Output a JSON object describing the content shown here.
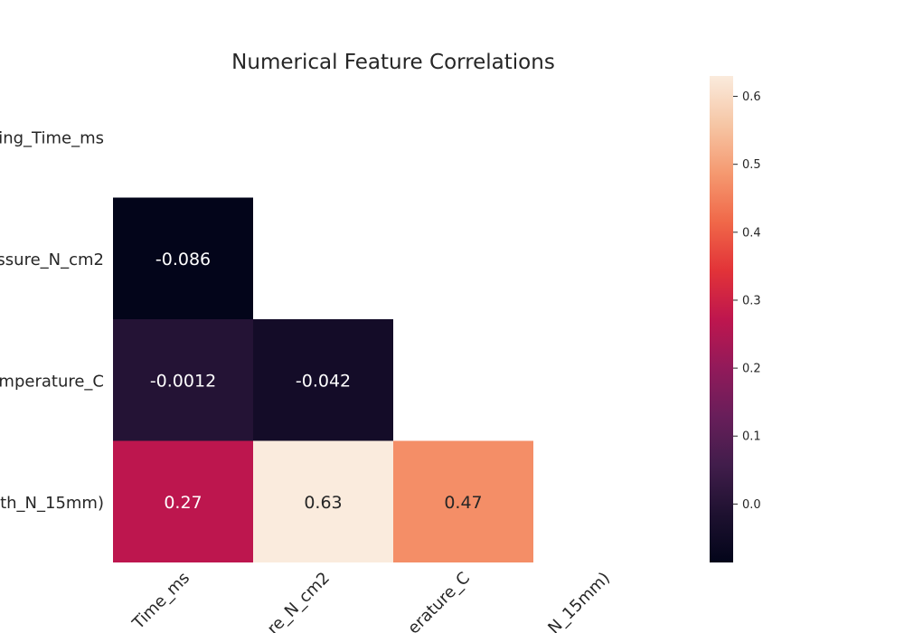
{
  "chart_data": {
    "type": "heatmap",
    "title": "Numerical Feature Correlations",
    "row_labels": [
      "ing_Time_ms",
      "ssure_N_cm2",
      "emperature_C",
      "gth_N_15mm)"
    ],
    "col_labels": [
      "Time_ms",
      "re_N_cm2",
      "erature_C",
      "N_15mm)"
    ],
    "cells": [
      {
        "row": 1,
        "col": 0,
        "value": -0.086,
        "label": "-0.086"
      },
      {
        "row": 2,
        "col": 0,
        "value": -0.0012,
        "label": "-0.0012"
      },
      {
        "row": 2,
        "col": 1,
        "value": -0.042,
        "label": "-0.042"
      },
      {
        "row": 3,
        "col": 0,
        "value": 0.27,
        "label": "0.27"
      },
      {
        "row": 3,
        "col": 1,
        "value": 0.63,
        "label": "0.63"
      },
      {
        "row": 3,
        "col": 2,
        "value": 0.47,
        "label": "0.47"
      }
    ],
    "mask": "upper-triangle-including-diagonal",
    "colorbar": {
      "range": [
        -0.086,
        0.63
      ],
      "ticks": [
        0.0,
        0.1,
        0.2,
        0.3,
        0.4,
        0.5,
        0.6
      ],
      "tick_labels": [
        "0.0",
        "0.1",
        "0.2",
        "0.3",
        "0.4",
        "0.5",
        "0.6"
      ],
      "colormap": "rocket"
    },
    "grid": false,
    "legend": "colorbar-right"
  }
}
